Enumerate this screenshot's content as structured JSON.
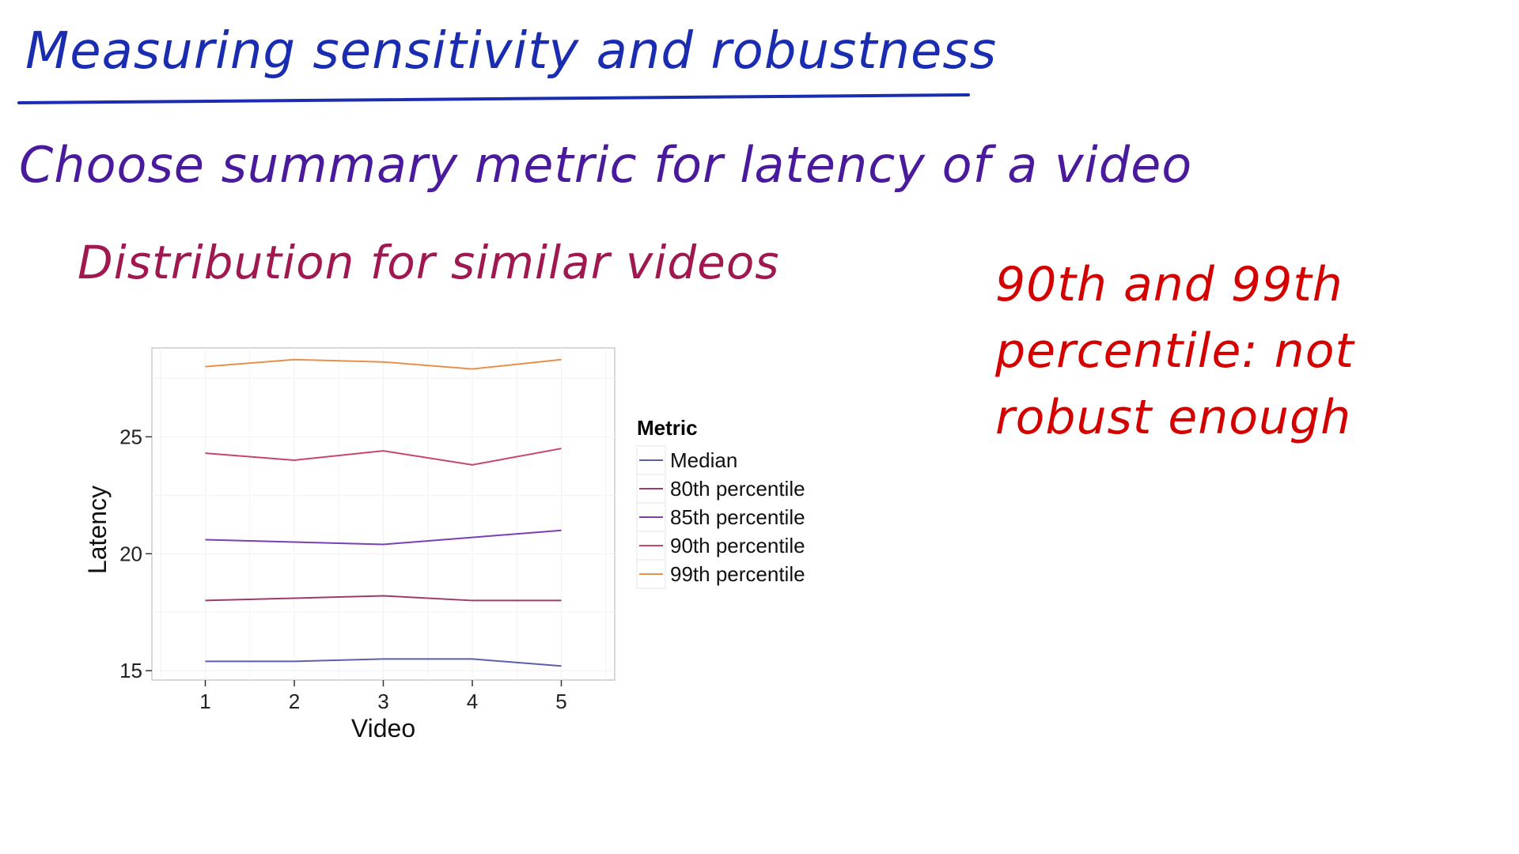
{
  "annotations": {
    "title": "Measuring sensitivity and robustness",
    "subtitle": "Choose summary metric for latency of a video",
    "subsubtitle": "Distribution for similar videos",
    "note_lines": [
      "90th and 99th",
      "percentile: not",
      "robust enough"
    ]
  },
  "colors": {
    "title": "#1a2db0",
    "subtitle": "#4a1a9c",
    "subsubtitle": "#a01850",
    "note": "#d40000"
  },
  "chart_data": {
    "type": "line",
    "title": "",
    "xlabel": "Video",
    "ylabel": "Latency",
    "x": [
      1,
      2,
      3,
      4,
      5
    ],
    "xlim": [
      0.4,
      5.6
    ],
    "ylim": [
      14.6,
      28.8
    ],
    "x_ticks": [
      1,
      2,
      3,
      4,
      5
    ],
    "y_ticks": [
      15,
      20,
      25
    ],
    "grid": true,
    "legend_position": "right",
    "legend_title": "Metric",
    "series": [
      {
        "name": "Median",
        "color": "#5b5fb0",
        "values": [
          15.4,
          15.4,
          15.5,
          15.5,
          15.2
        ]
      },
      {
        "name": "80th percentile",
        "color": "#9c3a6b",
        "values": [
          18.0,
          18.1,
          18.2,
          18.0,
          18.0
        ]
      },
      {
        "name": "85th percentile",
        "color": "#7b3fb5",
        "values": [
          20.6,
          20.5,
          20.4,
          20.7,
          21.0
        ]
      },
      {
        "name": "90th percentile",
        "color": "#c8456a",
        "values": [
          24.3,
          24.0,
          24.4,
          23.8,
          24.5
        ]
      },
      {
        "name": "99th percentile",
        "color": "#e8904a",
        "values": [
          28.0,
          28.3,
          28.2,
          27.9,
          28.3
        ]
      }
    ]
  }
}
